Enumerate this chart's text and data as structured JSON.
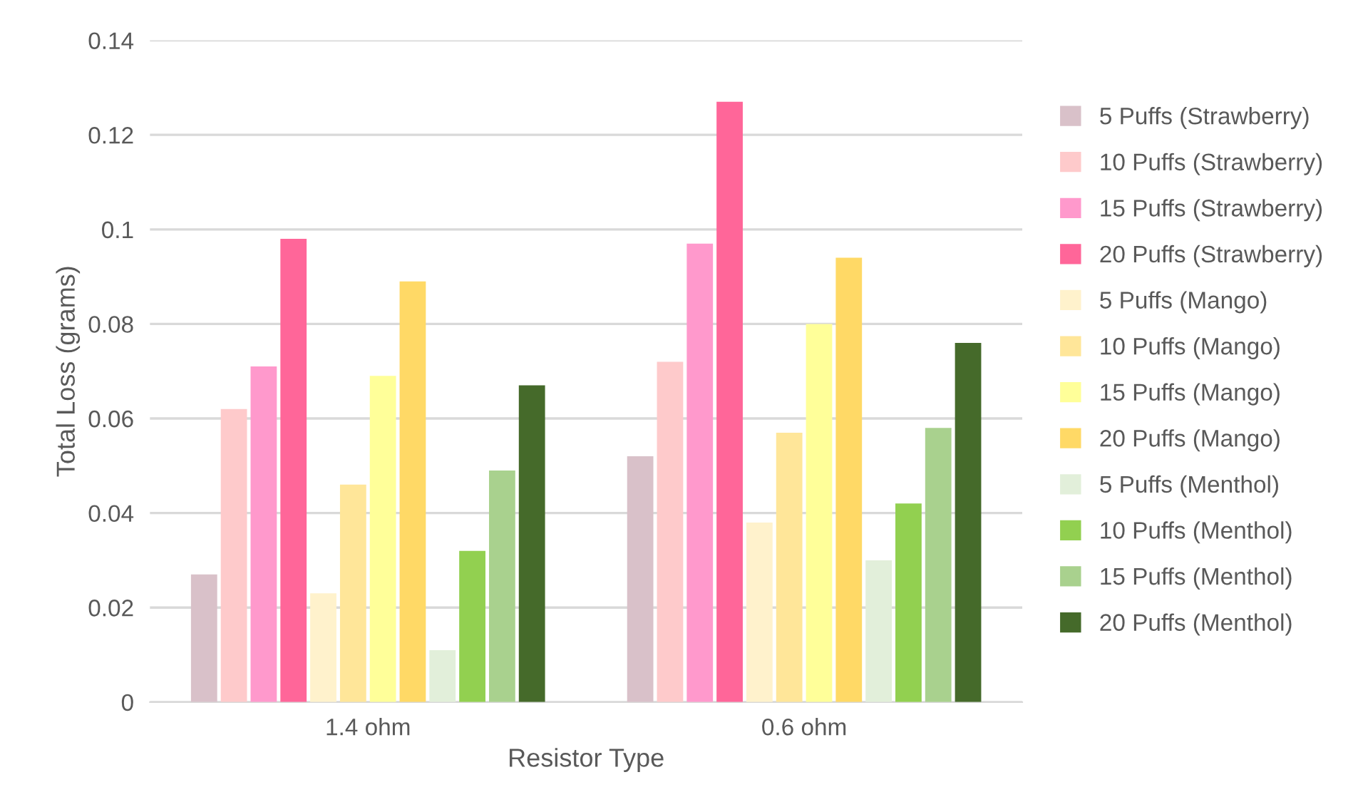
{
  "chart_data": {
    "type": "bar",
    "xlabel": "Resistor Type",
    "ylabel": "Total Loss (grams)",
    "categories": [
      "1.4 ohm",
      "0.6 ohm"
    ],
    "series": [
      {
        "name": "5 Puffs (Strawberry)",
        "color": "#d9c1c9",
        "values": [
          0.027,
          0.052
        ]
      },
      {
        "name": "10 Puffs (Strawberry)",
        "color": "#fecacb",
        "values": [
          0.062,
          0.072
        ]
      },
      {
        "name": "15 Puffs (Strawberry)",
        "color": "#ff99cc",
        "values": [
          0.071,
          0.097
        ]
      },
      {
        "name": "20 Puffs (Strawberry)",
        "color": "#ff6699",
        "values": [
          0.098,
          0.127
        ]
      },
      {
        "name": "5 Puffs (Mango)",
        "color": "#fff2cc",
        "values": [
          0.023,
          0.038
        ]
      },
      {
        "name": "10 Puffs (Mango)",
        "color": "#ffe699",
        "values": [
          0.046,
          0.057
        ]
      },
      {
        "name": "15 Puffs (Mango)",
        "color": "#ffff99",
        "values": [
          0.069,
          0.08
        ]
      },
      {
        "name": "20 Puffs (Mango)",
        "color": "#ffd966",
        "values": [
          0.089,
          0.094
        ]
      },
      {
        "name": "5 Puffs (Menthol)",
        "color": "#e2efda",
        "values": [
          0.011,
          0.03
        ]
      },
      {
        "name": "10 Puffs (Menthol)",
        "color": "#92d050",
        "values": [
          0.032,
          0.042
        ]
      },
      {
        "name": "15 Puffs (Menthol)",
        "color": "#a9d18e",
        "values": [
          0.049,
          0.058
        ]
      },
      {
        "name": "20 Puffs (Menthol)",
        "color": "#456a2a",
        "values": [
          0.067,
          0.076
        ]
      }
    ],
    "ylim": [
      0,
      0.14
    ],
    "yticks": [
      0,
      0.02,
      0.04,
      0.06,
      0.08,
      0.1,
      0.12,
      0.14
    ],
    "grid": "y",
    "legend": "right"
  }
}
